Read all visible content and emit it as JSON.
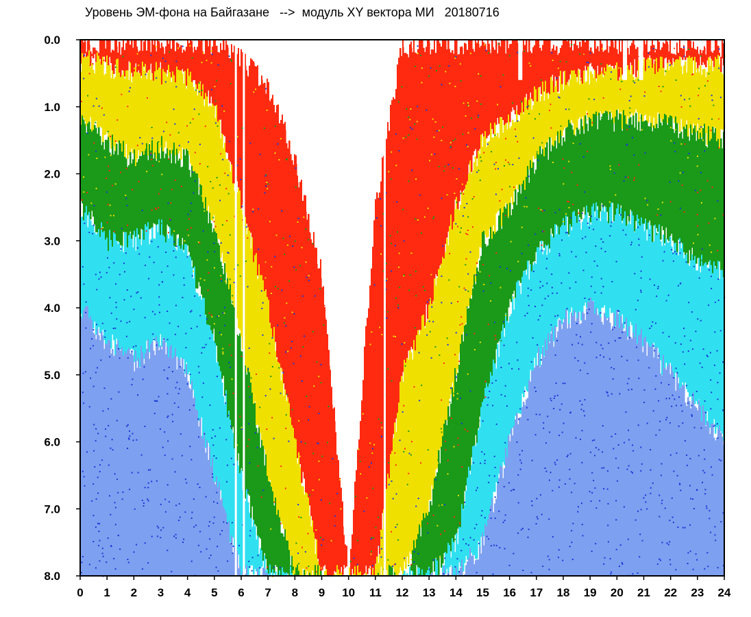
{
  "chart_data": {
    "type": "heatmap",
    "title": "Уровень ЭМ-фона на Байгазане   -->  модуль XY вектора МИ   20180716",
    "xlabel": "",
    "ylabel": "",
    "xlim": [
      0,
      24
    ],
    "ylim": [
      8.0,
      0.0
    ],
    "x_ticks": [
      "0",
      "1",
      "2",
      "3",
      "4",
      "5",
      "6",
      "7",
      "8",
      "9",
      "10",
      "11",
      "12",
      "13",
      "14",
      "15",
      "16",
      "17",
      "18",
      "19",
      "20",
      "21",
      "22",
      "23",
      "24"
    ],
    "y_ticks": [
      "0.0",
      "1.0",
      "2.0",
      "3.0",
      "4.0",
      "5.0",
      "6.0",
      "7.0",
      "8.0"
    ],
    "grid": false,
    "legend": "none",
    "color_scale": [
      "#ffffff",
      "#ff2a10",
      "#f0e000",
      "#1a9a18",
      "#30e0f0",
      "#7ea0f0",
      "#1838d8"
    ],
    "hourly_red_edge": [
      0.05,
      0.05,
      0.05,
      0.05,
      0.05,
      0.05,
      0.3,
      0.7,
      1.8,
      3.5,
      8.0,
      2.5,
      0.1,
      0.05,
      0.05,
      0.05,
      0.05,
      0.05,
      0.05,
      0.05,
      0.05,
      0.1,
      0.1,
      0.1,
      0.1
    ],
    "hourly_yellow_edge": [
      0.3,
      0.4,
      0.5,
      0.5,
      0.6,
      1.0,
      2.5,
      4.0,
      6.0,
      8.0,
      8.0,
      8.0,
      5.0,
      4.0,
      2.5,
      1.5,
      1.2,
      0.8,
      0.6,
      0.5,
      0.5,
      0.4,
      0.4,
      0.4,
      0.4
    ],
    "hourly_green_edge": [
      1.2,
      1.5,
      1.8,
      1.6,
      1.8,
      2.8,
      4.5,
      6.5,
      8.0,
      8.0,
      8.0,
      8.0,
      8.0,
      7.0,
      5.0,
      3.0,
      2.5,
      1.8,
      1.4,
      1.2,
      1.2,
      1.2,
      1.3,
      1.4,
      1.5
    ],
    "hourly_cyan_edge": [
      2.5,
      3.0,
      3.0,
      2.8,
      3.2,
      4.5,
      6.5,
      8.0,
      8.0,
      8.0,
      8.0,
      8.0,
      8.0,
      8.0,
      7.5,
      5.5,
      4.0,
      3.2,
      2.8,
      2.6,
      2.6,
      2.8,
      3.0,
      3.3,
      3.5
    ],
    "hourly_blue_edge": [
      4.0,
      4.5,
      4.8,
      4.5,
      5.0,
      6.5,
      8.0,
      8.0,
      8.0,
      8.0,
      8.0,
      8.0,
      8.0,
      8.0,
      8.0,
      7.5,
      6.0,
      4.8,
      4.2,
      4.0,
      4.2,
      4.5,
      5.0,
      5.5,
      6.0
    ],
    "gaps_hours": [
      5.8,
      6.1,
      11.35
    ],
    "notch_hours": [
      16.4,
      20.3,
      20.9
    ]
  }
}
